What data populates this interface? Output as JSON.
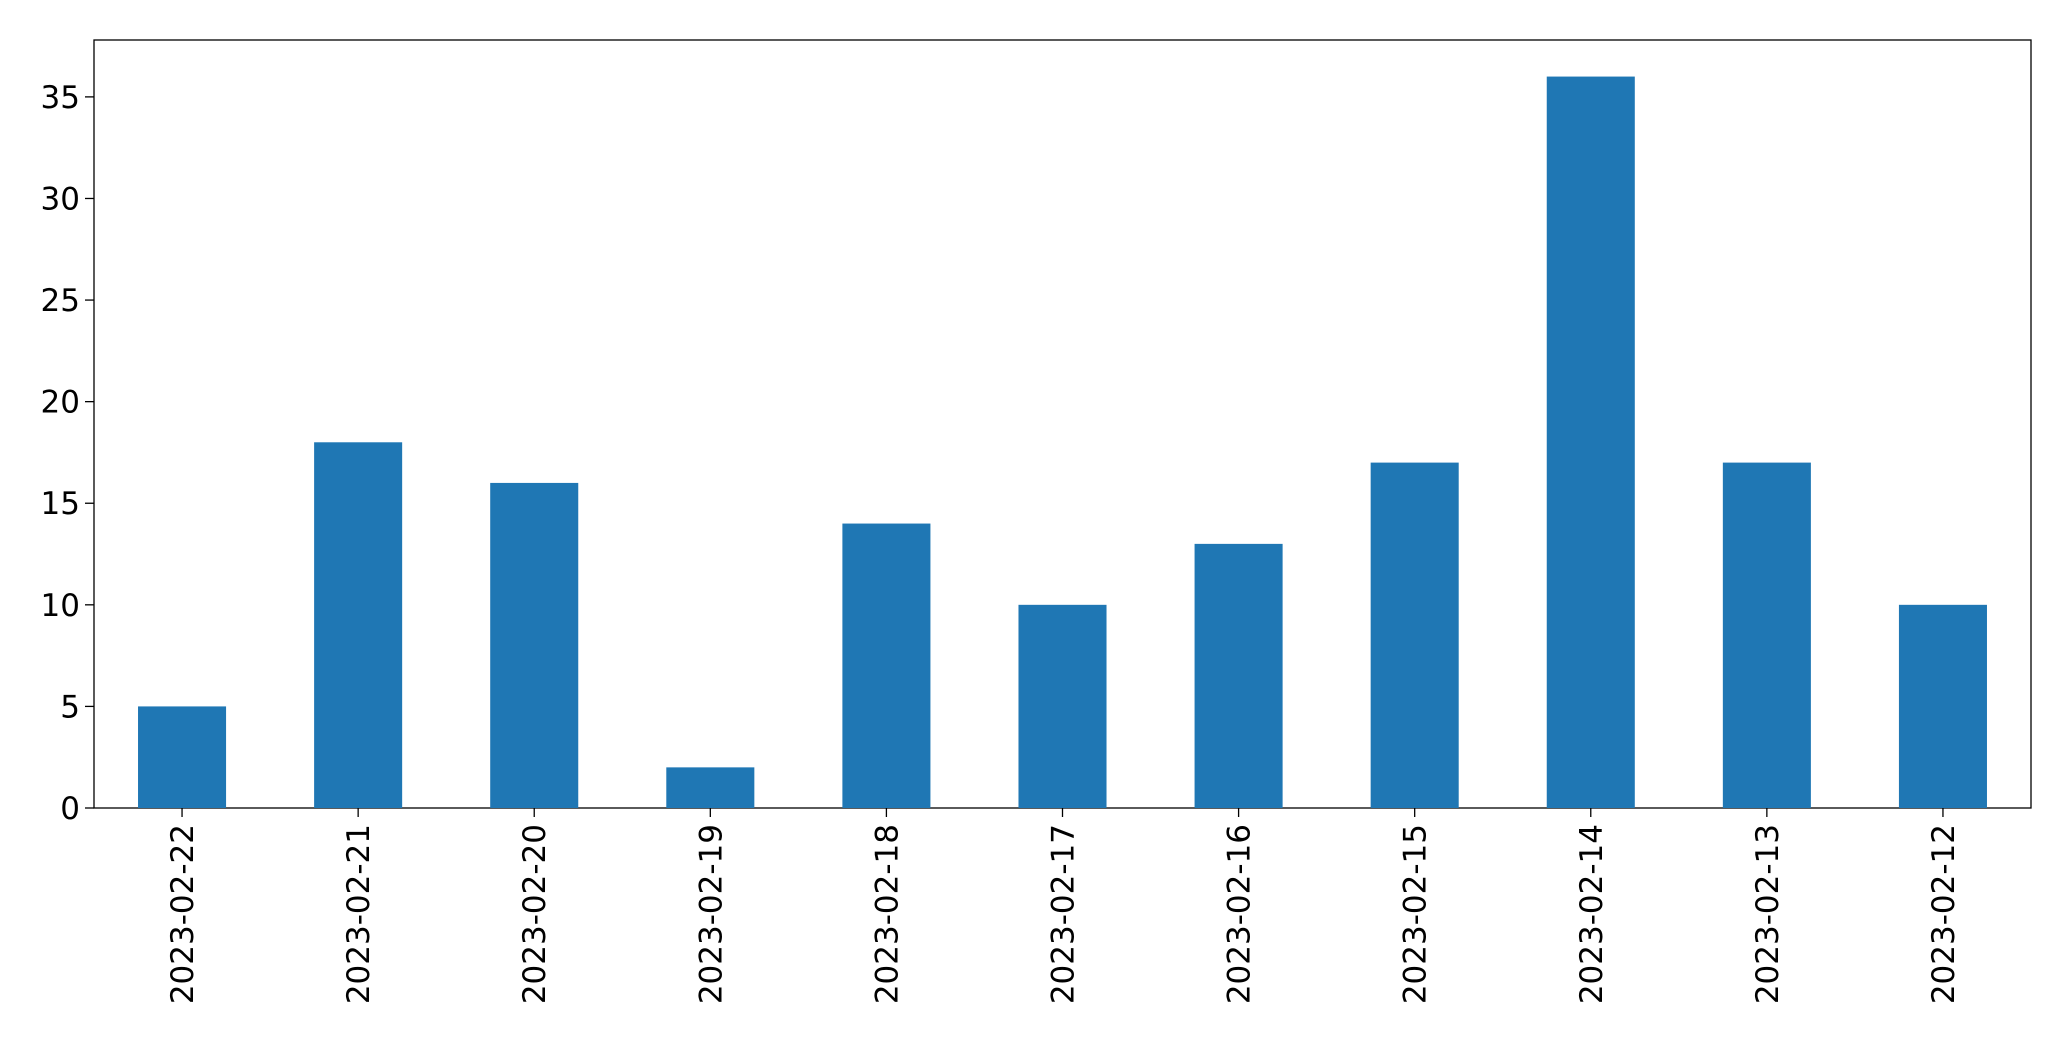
{
  "chart_data": {
    "type": "bar",
    "categories": [
      "2023-02-22",
      "2023-02-21",
      "2023-02-20",
      "2023-02-19",
      "2023-02-18",
      "2023-02-17",
      "2023-02-16",
      "2023-02-15",
      "2023-02-14",
      "2023-02-13",
      "2023-02-12"
    ],
    "values": [
      5,
      18,
      16,
      2,
      14,
      10,
      13,
      17,
      36,
      17,
      10
    ],
    "color": "#1f77b4",
    "ylim": [
      0,
      37.8
    ],
    "yticks": [
      0,
      5,
      10,
      15,
      20,
      25,
      30,
      35
    ],
    "grid": false
  }
}
